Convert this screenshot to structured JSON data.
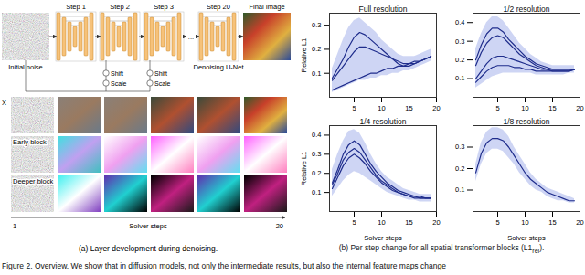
{
  "diagram": {
    "steps": [
      "Step 1",
      "Step 2",
      "Step 3",
      "...",
      "Step 20"
    ],
    "initial": "Initial noise",
    "final": "Final Image",
    "unet": "Denoising U-Net",
    "modulations": [
      [
        "Shift",
        "Scale"
      ],
      [
        "Shift",
        "Scale"
      ]
    ],
    "rows": [
      "X",
      "Early block",
      "Deeper block"
    ],
    "axis": {
      "start": "1",
      "label": "Solver steps",
      "end": "20"
    },
    "caption_a": "(a) Layer development during denoising.",
    "caption_b": [
      "(b) Per step change for all spatial transformer blocks (L1",
      "rel",
      ")."
    ],
    "caption": "Figure 2. Overview. We show that in diffusion models, not only the intermediate results, but also the internal feature maps change"
  },
  "chart_data": [
    {
      "type": "line",
      "title": "Full resolution",
      "ylabel": "Relative L1",
      "x": [
        1,
        2,
        3,
        4,
        5,
        6,
        7,
        8,
        9,
        10,
        11,
        12,
        13,
        14,
        15,
        16,
        17,
        18,
        19
      ],
      "series": [
        {
          "color": "#1f2d8c",
          "values": [
            0.08,
            0.12,
            0.16,
            0.21,
            0.25,
            0.27,
            0.26,
            0.24,
            0.22,
            0.2,
            0.18,
            0.16,
            0.14,
            0.13,
            0.13,
            0.14,
            0.15,
            0.16,
            0.17
          ]
        },
        {
          "color": "#1f2d8c",
          "values": [
            0.07,
            0.1,
            0.13,
            0.16,
            0.19,
            0.21,
            0.21,
            0.2,
            0.19,
            0.18,
            0.17,
            0.16,
            0.15,
            0.14,
            0.14,
            0.14,
            0.15,
            0.16,
            0.17
          ]
        },
        {
          "color": "#1f2d8c",
          "values": [
            0.03,
            0.04,
            0.05,
            0.06,
            0.07,
            0.08,
            0.09,
            0.1,
            0.1,
            0.11,
            0.12,
            0.12,
            0.13,
            0.13,
            0.14,
            0.15,
            0.15,
            0.16,
            0.17
          ]
        }
      ],
      "band": {
        "color": "#b9c3ef",
        "low": [
          0.02,
          0.03,
          0.04,
          0.05,
          0.06,
          0.07,
          0.07,
          0.08,
          0.08,
          0.09,
          0.09,
          0.1,
          0.1,
          0.11,
          0.11,
          0.12,
          0.13,
          0.14,
          0.15
        ],
        "high": [
          0.12,
          0.18,
          0.24,
          0.29,
          0.32,
          0.33,
          0.31,
          0.29,
          0.27,
          0.24,
          0.22,
          0.2,
          0.18,
          0.17,
          0.17,
          0.17,
          0.18,
          0.19,
          0.2
        ]
      },
      "xlim": [
        0.5,
        20
      ],
      "xticks": [
        5,
        10,
        15,
        20
      ],
      "ylim": [
        0,
        0.35
      ],
      "yticks": [
        0.1,
        0.2,
        0.3
      ]
    },
    {
      "type": "line",
      "title": "1/2 resolution",
      "x": [
        1,
        2,
        3,
        4,
        5,
        6,
        7,
        8,
        9,
        10,
        11,
        12,
        13,
        14,
        15,
        16,
        17,
        18,
        19
      ],
      "series": [
        {
          "color": "#1f2d8c",
          "values": [
            0.2,
            0.28,
            0.34,
            0.37,
            0.37,
            0.35,
            0.31,
            0.28,
            0.25,
            0.22,
            0.2,
            0.18,
            0.17,
            0.16,
            0.15,
            0.15,
            0.15,
            0.15,
            0.15
          ]
        },
        {
          "color": "#1f2d8c",
          "values": [
            0.17,
            0.24,
            0.29,
            0.32,
            0.33,
            0.32,
            0.29,
            0.26,
            0.23,
            0.21,
            0.19,
            0.17,
            0.16,
            0.15,
            0.15,
            0.15,
            0.15,
            0.15,
            0.15
          ]
        },
        {
          "color": "#1f2d8c",
          "values": [
            0.1,
            0.14,
            0.18,
            0.21,
            0.22,
            0.22,
            0.21,
            0.2,
            0.19,
            0.18,
            0.17,
            0.16,
            0.15,
            0.15,
            0.14,
            0.14,
            0.14,
            0.14,
            0.15
          ]
        },
        {
          "color": "#1f2d8c",
          "values": [
            0.08,
            0.11,
            0.14,
            0.16,
            0.17,
            0.17,
            0.17,
            0.16,
            0.16,
            0.15,
            0.15,
            0.14,
            0.14,
            0.14,
            0.14,
            0.14,
            0.14,
            0.14,
            0.15
          ]
        }
      ],
      "band": {
        "color": "#b9c3ef",
        "low": [
          0.05,
          0.07,
          0.09,
          0.11,
          0.12,
          0.13,
          0.13,
          0.13,
          0.13,
          0.13,
          0.13,
          0.12,
          0.12,
          0.12,
          0.12,
          0.12,
          0.12,
          0.13,
          0.13
        ],
        "high": [
          0.26,
          0.34,
          0.4,
          0.43,
          0.43,
          0.41,
          0.37,
          0.33,
          0.29,
          0.26,
          0.23,
          0.21,
          0.19,
          0.18,
          0.17,
          0.17,
          0.17,
          0.17,
          0.17
        ]
      },
      "xlim": [
        0.5,
        20
      ],
      "xticks": [
        5,
        10,
        15,
        20
      ],
      "ylim": [
        0,
        0.45
      ],
      "yticks": [
        0.1,
        0.2,
        0.3,
        0.4
      ]
    },
    {
      "type": "line",
      "title": "1/4 resolution",
      "ylabel": "Relative L1",
      "xlabel": "Solver steps",
      "x": [
        1,
        2,
        3,
        4,
        5,
        6,
        7,
        8,
        9,
        10,
        11,
        12,
        13,
        14,
        15,
        16,
        17,
        18,
        19
      ],
      "series": [
        {
          "color": "#1f2d8c",
          "values": [
            0.15,
            0.22,
            0.3,
            0.35,
            0.37,
            0.35,
            0.3,
            0.25,
            0.21,
            0.18,
            0.15,
            0.13,
            0.11,
            0.1,
            0.09,
            0.08,
            0.08,
            0.07,
            0.07
          ]
        },
        {
          "color": "#1f2d8c",
          "values": [
            0.14,
            0.2,
            0.27,
            0.31,
            0.33,
            0.31,
            0.27,
            0.23,
            0.19,
            0.16,
            0.14,
            0.12,
            0.1,
            0.09,
            0.08,
            0.08,
            0.07,
            0.07,
            0.07
          ]
        },
        {
          "color": "#1f2d8c",
          "values": [
            0.12,
            0.18,
            0.24,
            0.28,
            0.3,
            0.28,
            0.25,
            0.21,
            0.18,
            0.15,
            0.13,
            0.11,
            0.1,
            0.09,
            0.08,
            0.07,
            0.07,
            0.07,
            0.07
          ]
        }
      ],
      "band": {
        "color": "#b9c3ef",
        "low": [
          0.08,
          0.12,
          0.16,
          0.19,
          0.21,
          0.2,
          0.18,
          0.16,
          0.14,
          0.12,
          0.1,
          0.09,
          0.08,
          0.07,
          0.06,
          0.06,
          0.05,
          0.05,
          0.05
        ],
        "high": [
          0.22,
          0.3,
          0.37,
          0.42,
          0.43,
          0.41,
          0.36,
          0.3,
          0.25,
          0.21,
          0.18,
          0.16,
          0.14,
          0.12,
          0.11,
          0.1,
          0.09,
          0.09,
          0.09
        ]
      },
      "xlim": [
        0.5,
        20
      ],
      "xticks": [
        5,
        10,
        15,
        20
      ],
      "ylim": [
        0,
        0.45
      ],
      "yticks": [
        0.1,
        0.2,
        0.3,
        0.4
      ]
    },
    {
      "type": "line",
      "title": "1/8 resolution",
      "xlabel": "Solver steps",
      "x": [
        1,
        2,
        3,
        4,
        5,
        6,
        7,
        8,
        9,
        10,
        11,
        12,
        13,
        14,
        15,
        16,
        17,
        18,
        19
      ],
      "series": [
        {
          "color": "#1f2d8c",
          "values": [
            0.18,
            0.27,
            0.32,
            0.34,
            0.34,
            0.33,
            0.3,
            0.26,
            0.22,
            0.18,
            0.15,
            0.13,
            0.11,
            0.09,
            0.08,
            0.07,
            0.06,
            0.05,
            0.05
          ]
        }
      ],
      "band": {
        "color": "#b9c3ef",
        "low": [
          0.14,
          0.22,
          0.27,
          0.29,
          0.29,
          0.28,
          0.25,
          0.22,
          0.18,
          0.15,
          0.12,
          0.1,
          0.09,
          0.07,
          0.06,
          0.05,
          0.05,
          0.04,
          0.04
        ],
        "high": [
          0.22,
          0.32,
          0.37,
          0.39,
          0.39,
          0.38,
          0.35,
          0.3,
          0.26,
          0.22,
          0.18,
          0.15,
          0.13,
          0.11,
          0.1,
          0.09,
          0.08,
          0.07,
          0.06
        ]
      },
      "xlim": [
        0.5,
        20
      ],
      "xticks": [
        5,
        10,
        15,
        20
      ],
      "ylim": [
        0,
        0.4
      ],
      "yticks": [
        0.1,
        0.2,
        0.3
      ]
    }
  ]
}
